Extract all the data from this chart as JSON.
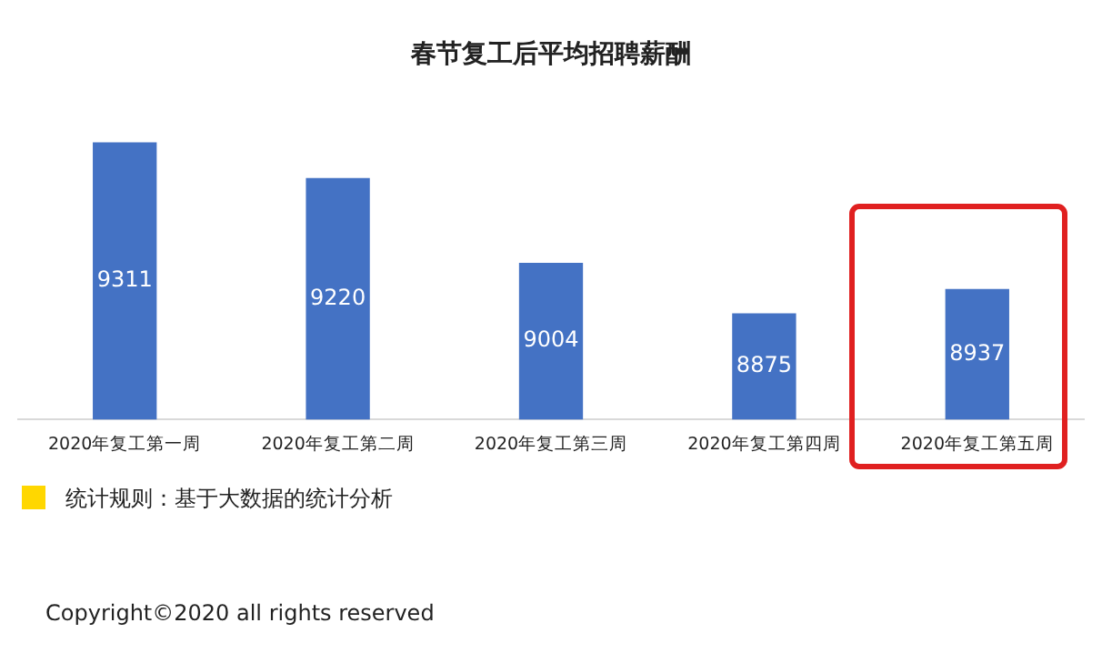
{
  "chart_data": {
    "type": "bar",
    "title": "春节复工后平均招聘薪酬",
    "categories": [
      "2020年复工第一周",
      "2020年复工第二周",
      "2020年复工第三周",
      "2020年复工第四周",
      "2020年复工第五周"
    ],
    "values": [
      9311,
      9220,
      9004,
      8875,
      8937
    ],
    "color": "#4472c4",
    "tick_labels": "x",
    "grid": false,
    "legend": false,
    "data_labels": true,
    "annotations": [
      "统计规则：基于大数据的统计分析",
      "Copyright©2020 all rights reserved"
    ]
  }
}
